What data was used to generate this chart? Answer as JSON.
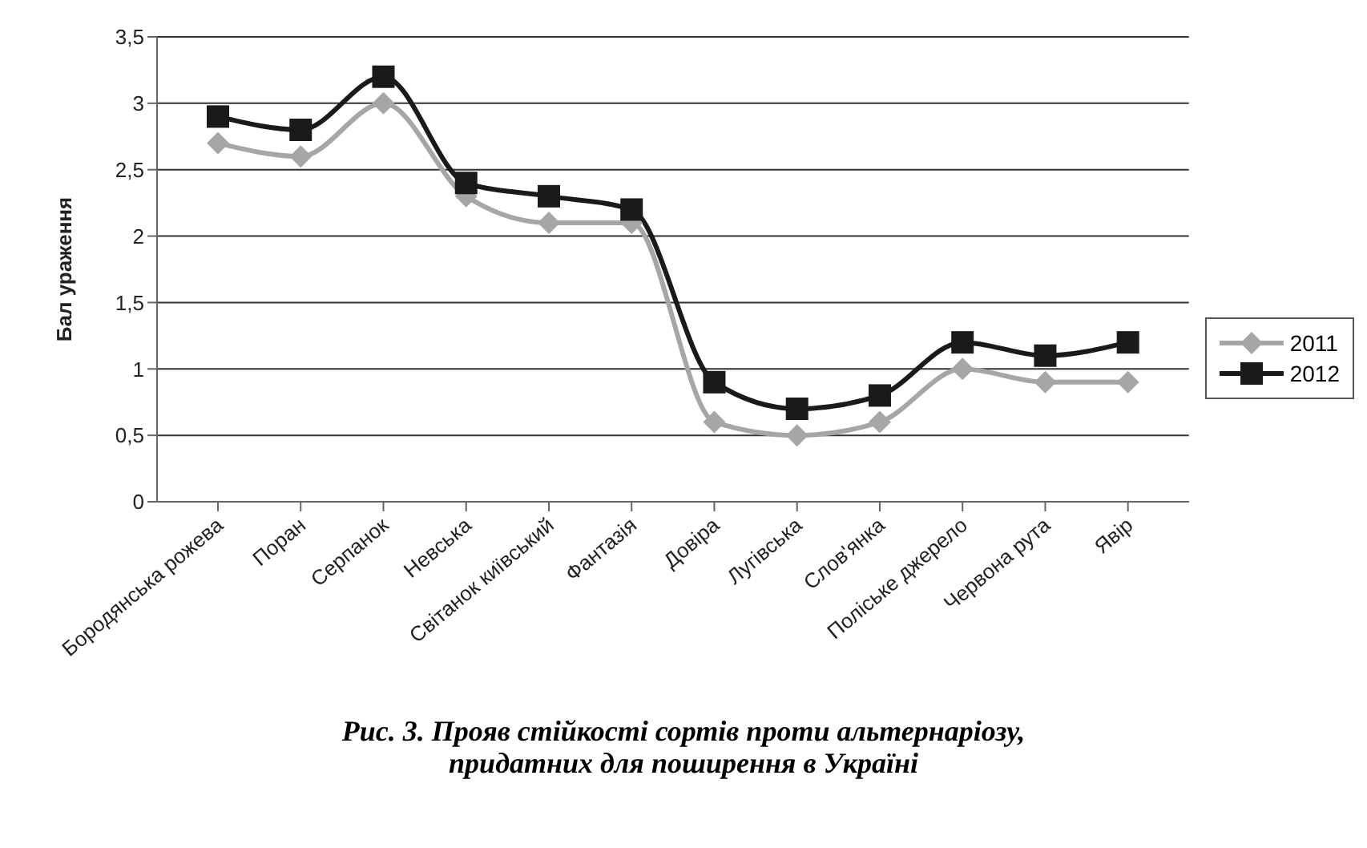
{
  "chart_data": {
    "type": "line",
    "title": "Рис. 3. Прояв стійкості сортів проти альтернаріозу, придатних для поширення в Україні",
    "ylabel": "Бал ураження",
    "categories": [
      "Бородянська рожева",
      "Поран",
      "Серпанок",
      "Невська",
      "Світанок київський",
      "Фантазія",
      "Довіра",
      "Лугівська",
      "Слов'янка",
      "Поліське джерело",
      "Червона рута",
      "Явір"
    ],
    "series": [
      {
        "name": "2011",
        "color": "#a6a6a6",
        "marker": "diamond",
        "values": [
          2.7,
          2.6,
          3.0,
          2.3,
          2.1,
          2.1,
          0.6,
          0.5,
          0.6,
          1.0,
          0.9,
          0.9
        ]
      },
      {
        "name": "2012",
        "color": "#1a1a1a",
        "marker": "square",
        "values": [
          2.9,
          2.8,
          3.2,
          2.4,
          2.3,
          2.2,
          0.9,
          0.7,
          0.8,
          1.2,
          1.1,
          1.2
        ]
      }
    ],
    "ylim": [
      0,
      3.5
    ],
    "yticks": [
      {
        "value": 0,
        "label": "0"
      },
      {
        "value": 0.5,
        "label": "0,5"
      },
      {
        "value": 1,
        "label": "1"
      },
      {
        "value": 1.5,
        "label": "1,5"
      },
      {
        "value": 2,
        "label": "2"
      },
      {
        "value": 2.5,
        "label": "2,5"
      },
      {
        "value": 3,
        "label": "3"
      },
      {
        "value": 3.5,
        "label": "3,5"
      }
    ],
    "grid": "y",
    "legend": "right",
    "line_style": "solid"
  }
}
